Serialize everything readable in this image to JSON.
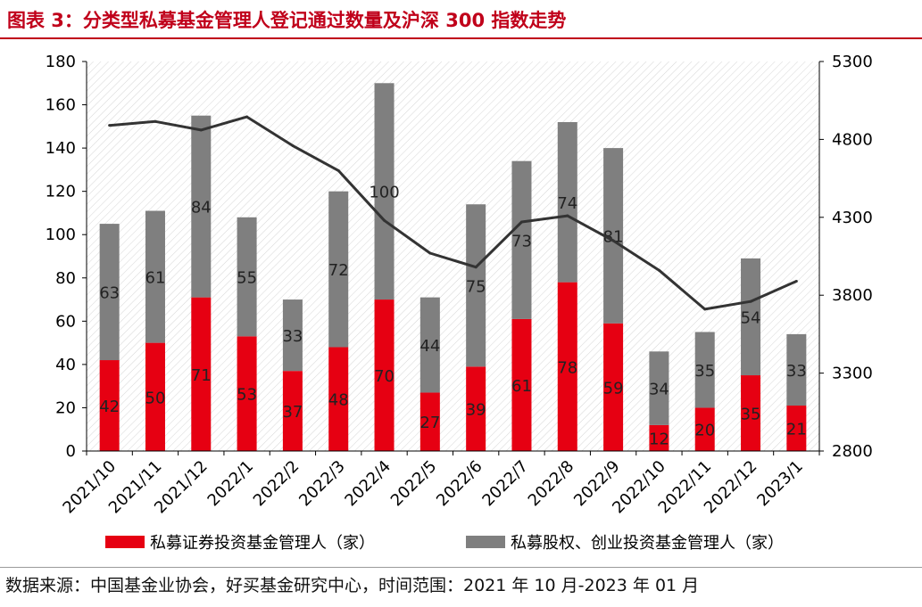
{
  "title": "图表 3：分类型私募基金管理人登记通过数量及沪深 300 指数走势",
  "source": "数据来源：中国基金业协会，好买基金研究中心，时间范围：2021 年 10 月-2023 年 01 月",
  "colors": {
    "title": "#c0001a",
    "red": "#e60012",
    "gray": "#7f7f7f",
    "line": "#333333"
  },
  "chart_data": {
    "type": "bar",
    "stacked": true,
    "categories": [
      "2021/10",
      "2021/11",
      "2021/12",
      "2022/1",
      "2022/2",
      "2022/3",
      "2022/4",
      "2022/5",
      "2022/6",
      "2022/7",
      "2022/8",
      "2022/9",
      "2022/10",
      "2022/11",
      "2022/12",
      "2023/1"
    ],
    "series": [
      {
        "name": "私募证券投资基金管理人（家）",
        "axis": "left",
        "color": "#e60012",
        "values": [
          42,
          50,
          71,
          53,
          37,
          48,
          70,
          27,
          39,
          61,
          78,
          59,
          12,
          20,
          35,
          21
        ]
      },
      {
        "name": "私募股权、创业投资基金管理人（家）",
        "axis": "left",
        "color": "#7f7f7f",
        "values": [
          63,
          61,
          84,
          55,
          33,
          72,
          100,
          44,
          75,
          73,
          74,
          81,
          34,
          35,
          54,
          33
        ]
      },
      {
        "name": "沪深300指数",
        "type": "line",
        "axis": "right",
        "color": "#333333",
        "values": [
          4890,
          4915,
          4860,
          4945,
          4760,
          4600,
          4280,
          4070,
          3980,
          4270,
          4310,
          4150,
          3960,
          3710,
          3760,
          3890
        ]
      }
    ],
    "yleft": {
      "min": 0,
      "max": 180,
      "ticks": [
        "0",
        "20",
        "40",
        "60",
        "80",
        "100",
        "120",
        "140",
        "160",
        "180"
      ]
    },
    "yright": {
      "min": 2800,
      "max": 5300,
      "ticks": [
        "2800",
        "3300",
        "3800",
        "4300",
        "4800",
        "5300"
      ]
    },
    "legend": "bottom"
  }
}
